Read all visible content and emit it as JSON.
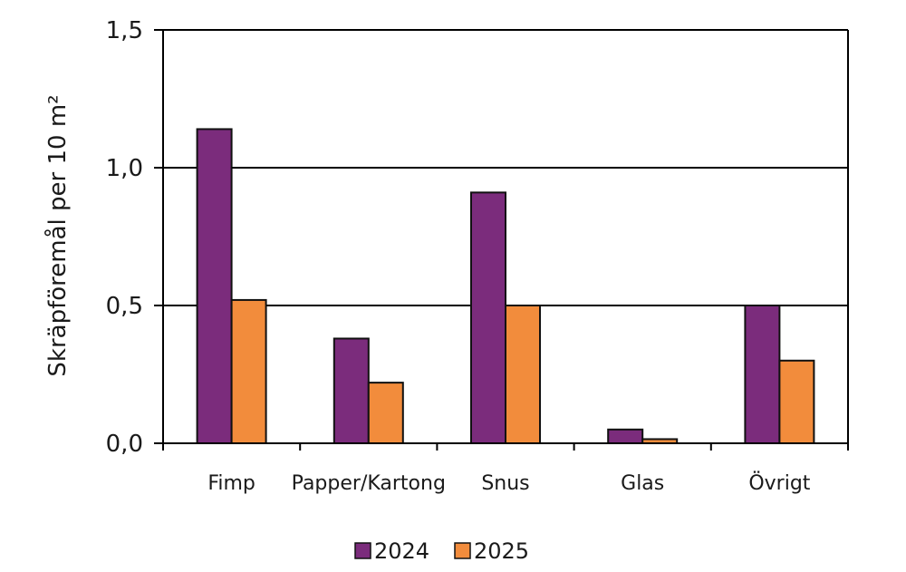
{
  "chart_data": {
    "type": "bar",
    "categories": [
      "Fimp",
      "Papper/Kartong",
      "Snus",
      "Glas",
      "Övrigt"
    ],
    "series": [
      {
        "name": "2024",
        "color": "#7b2c7c",
        "values": [
          1.14,
          0.38,
          0.91,
          0.05,
          0.5
        ]
      },
      {
        "name": "2025",
        "color": "#f28c3c",
        "values": [
          0.52,
          0.22,
          0.5,
          0.015,
          0.3
        ]
      }
    ],
    "ylabel": "Skräpföremål per 10 m²",
    "xlabel": "",
    "ylim": [
      0,
      1.5
    ],
    "yticks": [
      "0,0",
      "0,5",
      "1,0",
      "1,5"
    ],
    "grid": true,
    "legend_position": "bottom"
  }
}
